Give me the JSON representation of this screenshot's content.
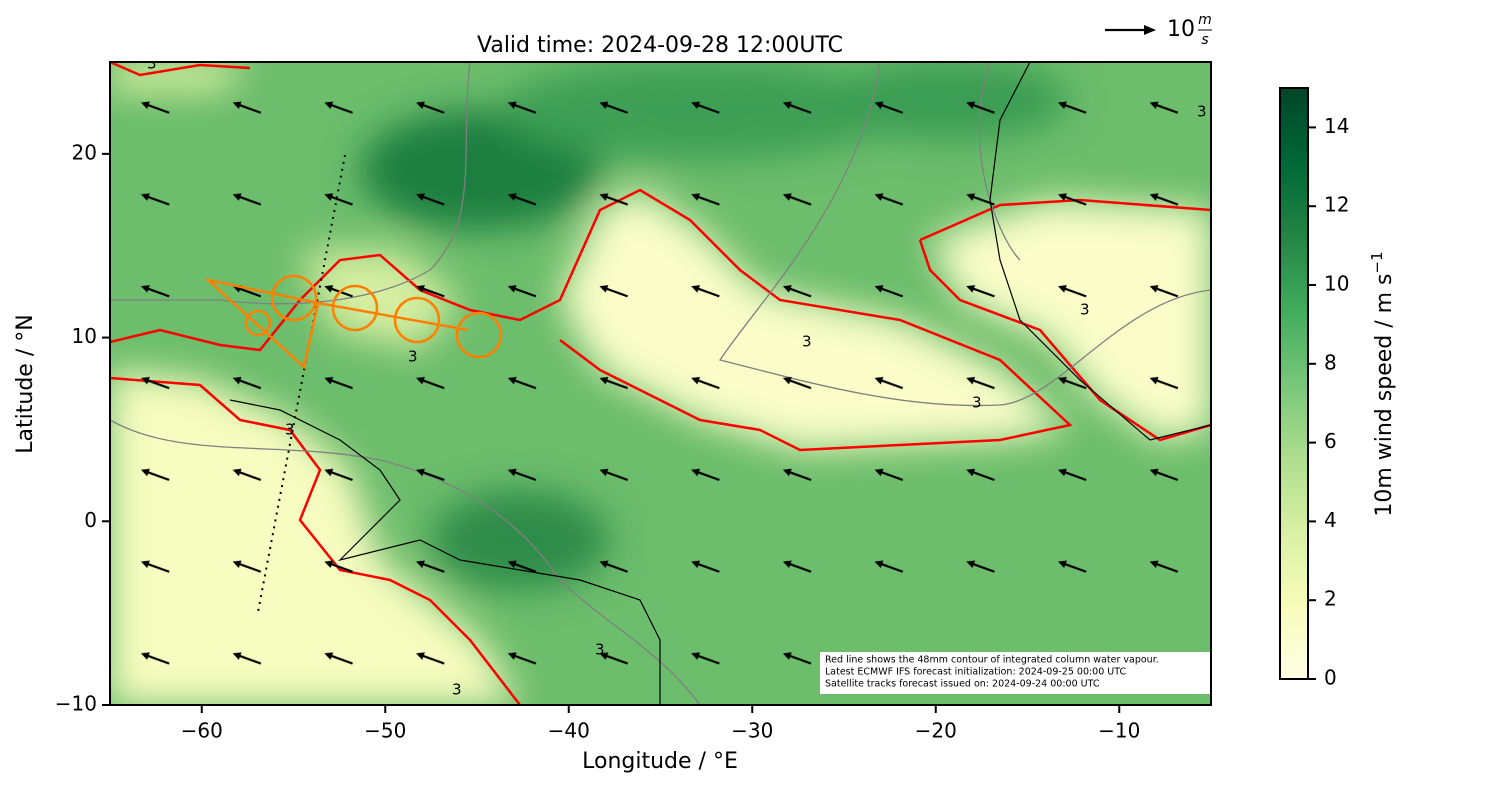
{
  "title": "Valid time: 2024-09-28 12:00UTC",
  "map": {
    "xlabel": "Longitude / °E",
    "ylabel": "Latitude / °N",
    "xlim": [
      -65,
      -5
    ],
    "ylim": [
      -10,
      25
    ],
    "xticks": [
      {
        "value": -60,
        "label": "−60"
      },
      {
        "value": -50,
        "label": "−50"
      },
      {
        "value": -40,
        "label": "−40"
      },
      {
        "value": -30,
        "label": "−30"
      },
      {
        "value": -20,
        "label": "−20"
      },
      {
        "value": -10,
        "label": "−10"
      }
    ],
    "yticks": [
      {
        "value": -10,
        "label": "−10"
      },
      0,
      10,
      20
    ],
    "contour_label": "3"
  },
  "colorbar": {
    "label": "10m wind speed / m s",
    "label_sup": "−1",
    "lim": [
      0,
      15
    ],
    "ticks": [
      0,
      2,
      4,
      6,
      8,
      10,
      12,
      14
    ],
    "colors": [
      "#ffffe5",
      "#f7fcb9",
      "#d9f0a3",
      "#addd8e",
      "#78c679",
      "#41ab5d",
      "#238443",
      "#006837",
      "#004529"
    ]
  },
  "vector_key": {
    "value": "10",
    "unit_top": "m",
    "unit_bottom": "s"
  },
  "note": [
    "Red line shows the 48mm contour of integrated column water vapour.",
    "Latest ECMWF IFS forecast initialization: 2024-09-25 00:00 UTC",
    "Satellite tracks forecast issued on: 2024-09-24 00:00 UTC"
  ]
}
